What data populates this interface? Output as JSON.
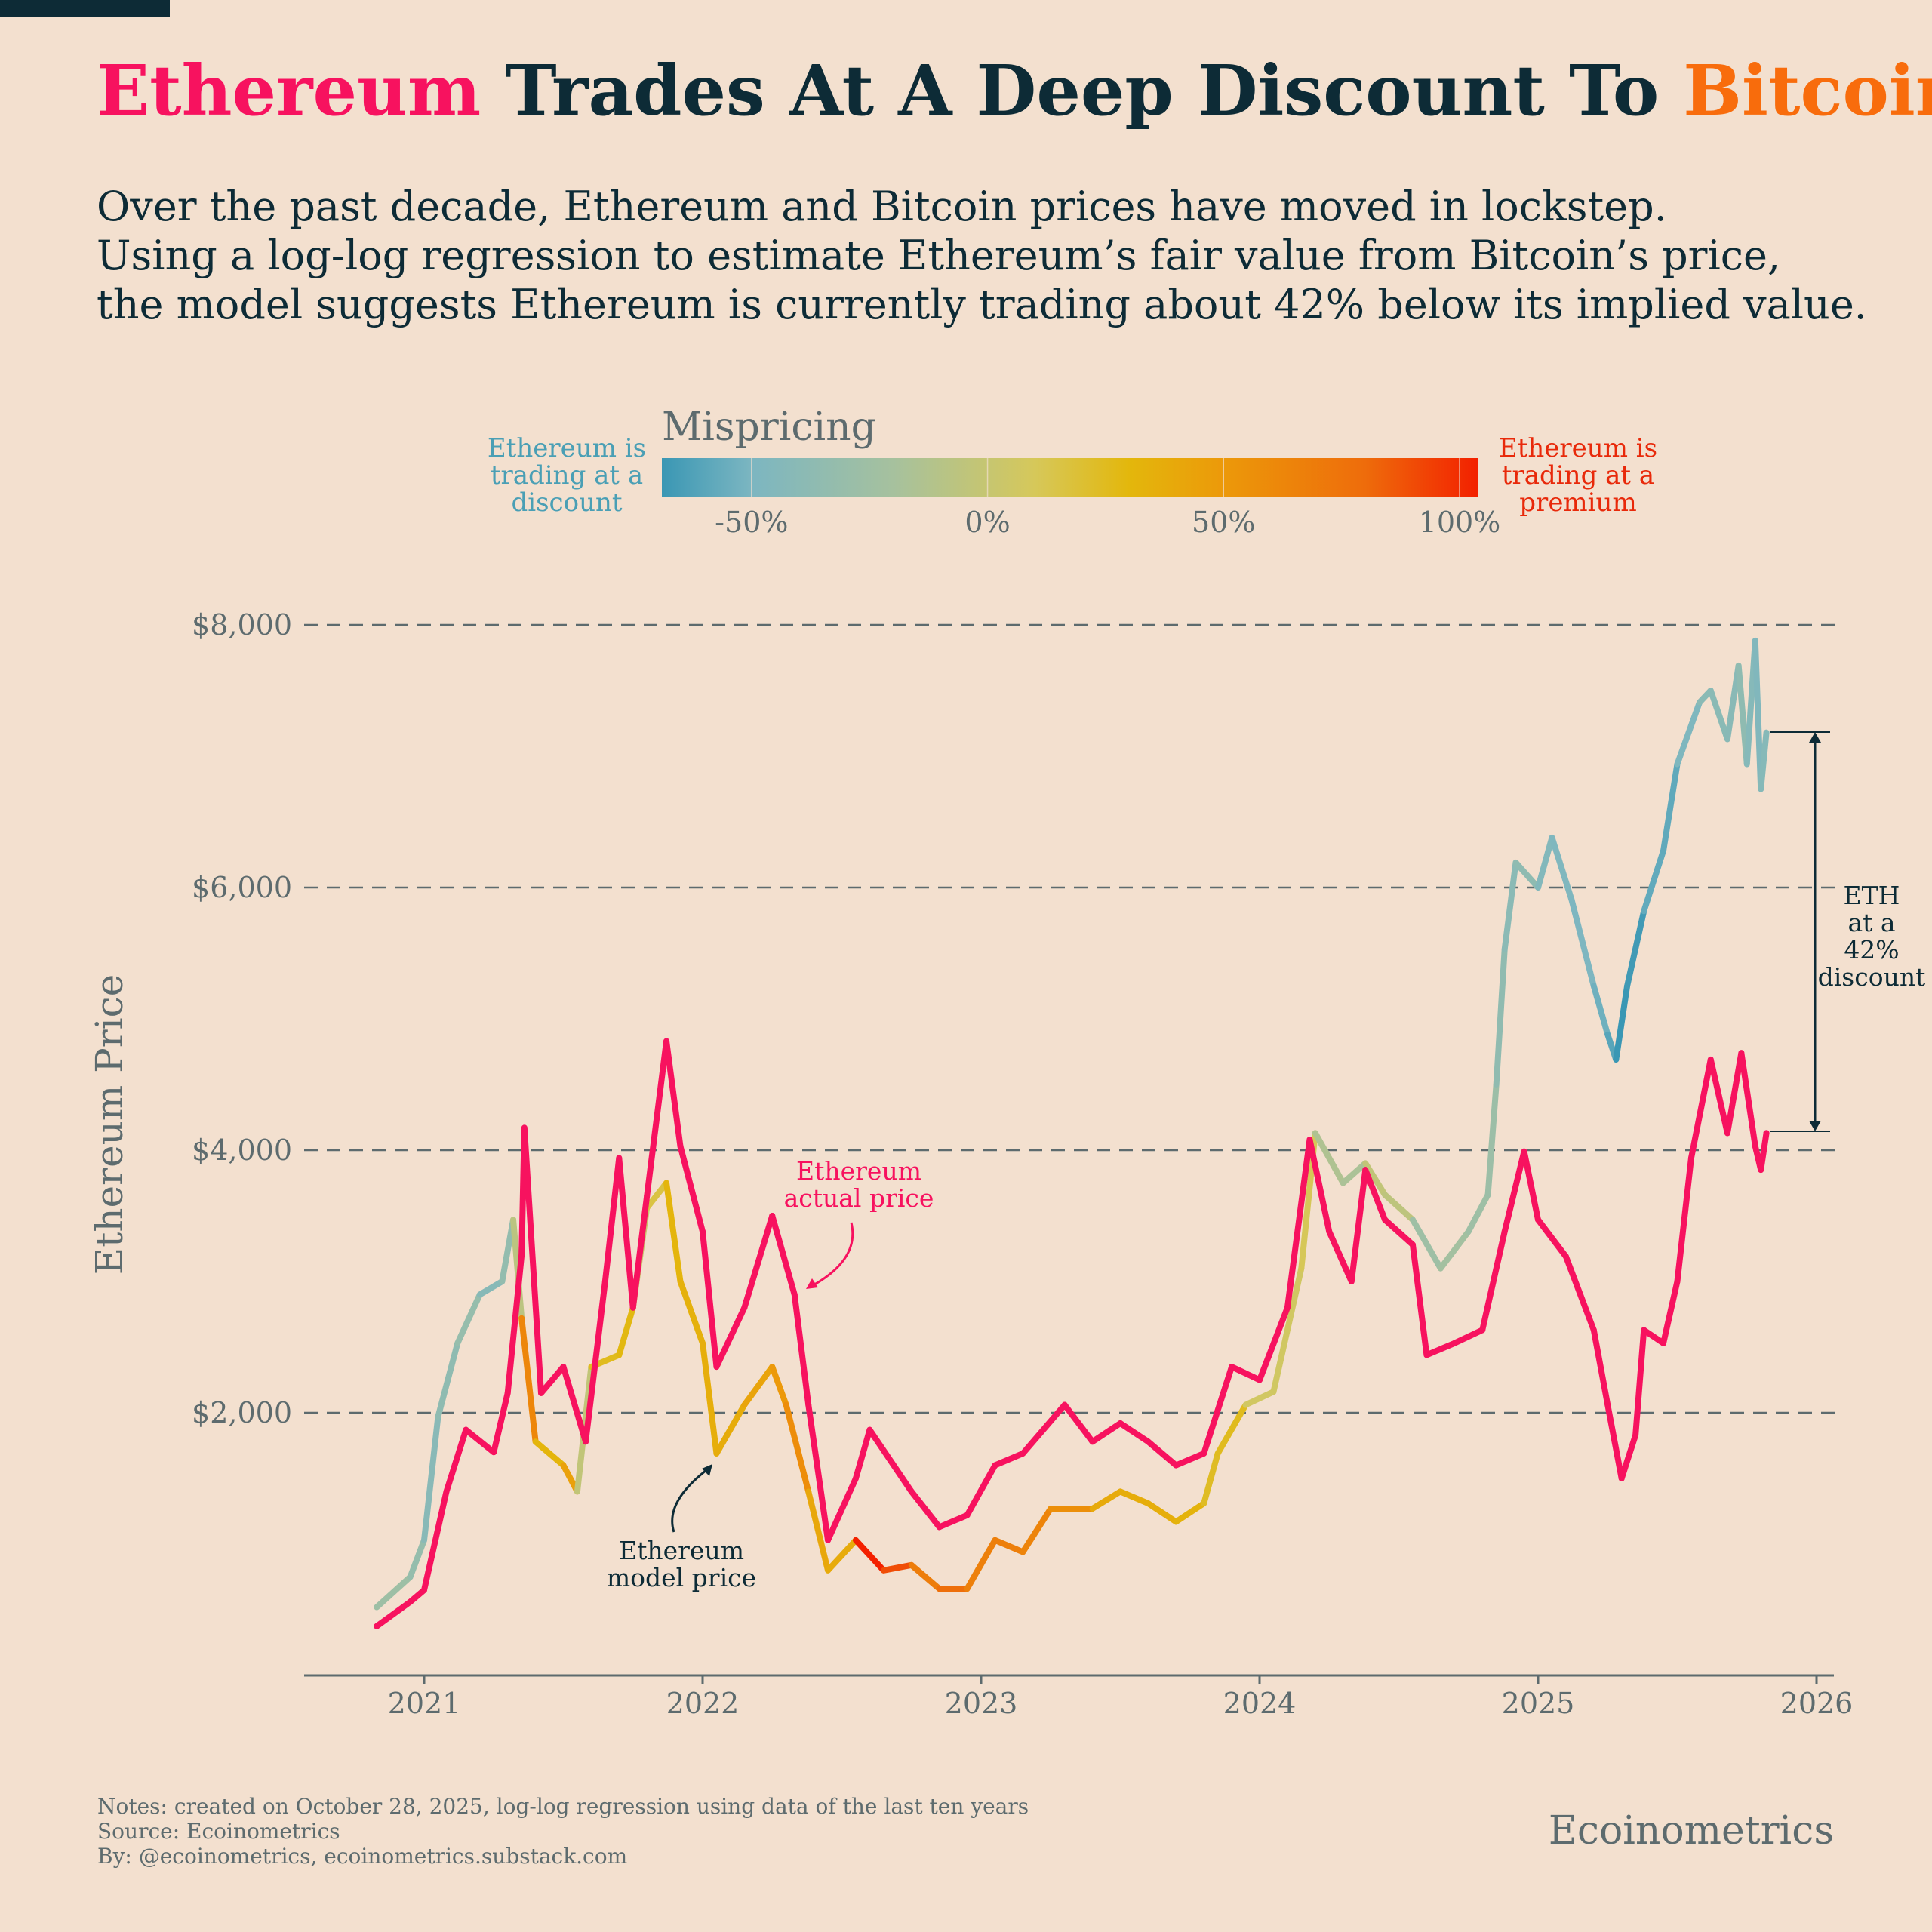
{
  "title": {
    "part1": "Ethereum",
    "part2": " Trades At A Deep Discount To ",
    "part3": "Bitcoin",
    "colors": {
      "ethereum": "#f7125f",
      "dark": "#0d2b36",
      "bitcoin": "#f86c0c"
    }
  },
  "subtitle": [
    "Over the past decade, Ethereum and Bitcoin prices have moved in lockstep.",
    "Using a log-log regression to estimate Ethereum’s fair value from Bitcoin’s price,",
    "the model suggests Ethereum is currently trading about 42% below its implied value."
  ],
  "legend": {
    "title": "Mispricing",
    "left_label": [
      "Ethereum is",
      "trading at a",
      "discount"
    ],
    "right_label": [
      "Ethereum is",
      "trading at a",
      "premium"
    ],
    "ticks": [
      "-50%",
      "0%",
      "50%",
      "100%"
    ],
    "tick_values": [
      -0.5,
      0,
      0.5,
      1.0
    ],
    "range": [
      -0.69,
      1.04
    ],
    "color_stops": [
      [
        -0.69,
        "#3a97b4"
      ],
      [
        -0.5,
        "#7cb6c1"
      ],
      [
        -0.2,
        "#a6c19e"
      ],
      [
        0.1,
        "#d6c85a"
      ],
      [
        0.3,
        "#e3b70c"
      ],
      [
        0.5,
        "#ec990a"
      ],
      [
        0.8,
        "#ee6c0b"
      ],
      [
        1.04,
        "#f32000"
      ]
    ]
  },
  "chart_data": {
    "type": "line",
    "ylabel": "Ethereum Price",
    "xlabel": "",
    "ylim": [
      0,
      8000
    ],
    "xlim": [
      2020.57,
      2026.07
    ],
    "yticks": [
      2000,
      4000,
      6000,
      8000
    ],
    "ytick_labels": [
      "$2,000",
      "$4,000",
      "$6,000",
      "$8,000"
    ],
    "xticks": [
      2021,
      2022,
      2023,
      2024,
      2025,
      2026
    ],
    "xtick_labels": [
      "2021",
      "2022",
      "2023",
      "2024",
      "2025",
      "2026"
    ],
    "grid": "horizontal dashed",
    "actual_color": "#f7125f",
    "series": [
      {
        "name": "Ethereum actual price",
        "x": [
          2020.83,
          2020.95,
          2021.0,
          2021.08,
          2021.15,
          2021.25,
          2021.3,
          2021.35,
          2021.36,
          2021.42,
          2021.5,
          2021.58,
          2021.65,
          2021.7,
          2021.75,
          2021.8,
          2021.87,
          2021.92,
          2022.0,
          2022.05,
          2022.15,
          2022.25,
          2022.33,
          2022.38,
          2022.45,
          2022.55,
          2022.6,
          2022.75,
          2022.85,
          2022.95,
          2023.05,
          2023.15,
          2023.3,
          2023.4,
          2023.5,
          2023.6,
          2023.7,
          2023.8,
          2023.9,
          2024.0,
          2024.1,
          2024.18,
          2024.25,
          2024.33,
          2024.38,
          2024.45,
          2024.55,
          2024.6,
          2024.7,
          2024.8,
          2024.88,
          2024.95,
          2025.0,
          2025.1,
          2025.2,
          2025.25,
          2025.3,
          2025.35,
          2025.38,
          2025.45,
          2025.5,
          2025.55,
          2025.62,
          2025.68,
          2025.73,
          2025.78,
          2025.8,
          2025.82
        ],
        "y": [
          375,
          560,
          650,
          1400,
          1870,
          1700,
          2150,
          3200,
          4170,
          2150,
          2350,
          1780,
          3000,
          3940,
          2800,
          3650,
          4830,
          4030,
          3380,
          2350,
          2800,
          3500,
          2900,
          2060,
          1030,
          1500,
          1870,
          1400,
          1130,
          1220,
          1600,
          1690,
          2060,
          1780,
          1920,
          1780,
          1600,
          1690,
          2350,
          2250,
          2800,
          4080,
          3380,
          3000,
          3850,
          3470,
          3280,
          2440,
          2530,
          2630,
          3380,
          3990,
          3470,
          3190,
          2630,
          2060,
          1500,
          1830,
          2630,
          2530,
          3000,
          3940,
          4690,
          4130,
          4740,
          4030,
          3850,
          4130
        ]
      },
      {
        "name": "Ethereum model price",
        "x": [
          2020.83,
          2020.95,
          2021.0,
          2021.05,
          2021.12,
          2021.2,
          2021.28,
          2021.32,
          2021.35,
          2021.4,
          2021.5,
          2021.55,
          2021.6,
          2021.7,
          2021.75,
          2021.8,
          2021.87,
          2021.92,
          2022.0,
          2022.05,
          2022.15,
          2022.25,
          2022.3,
          2022.38,
          2022.45,
          2022.55,
          2022.65,
          2022.75,
          2022.85,
          2022.95,
          2023.05,
          2023.15,
          2023.25,
          2023.4,
          2023.5,
          2023.6,
          2023.7,
          2023.8,
          2023.85,
          2023.95,
          2024.05,
          2024.15,
          2024.2,
          2024.3,
          2024.38,
          2024.45,
          2024.55,
          2024.65,
          2024.75,
          2024.82,
          2024.85,
          2024.88,
          2024.92,
          2025.0,
          2025.05,
          2025.12,
          2025.2,
          2025.25,
          2025.28,
          2025.32,
          2025.38,
          2025.45,
          2025.5,
          2025.58,
          2025.62,
          2025.68,
          2025.72,
          2025.75,
          2025.78,
          2025.8,
          2025.82
        ],
        "y": [
          520,
          750,
          1030,
          1970,
          2530,
          2900,
          3000,
          3470,
          2720,
          1780,
          1600,
          1400,
          2350,
          2440,
          2800,
          3560,
          3750,
          3000,
          2530,
          1690,
          2060,
          2350,
          2060,
          1400,
          800,
          1030,
          800,
          840,
          660,
          660,
          1030,
          940,
          1270,
          1270,
          1400,
          1310,
          1170,
          1310,
          1690,
          2060,
          2160,
          3100,
          4130,
          3750,
          3900,
          3660,
          3470,
          3100,
          3380,
          3660,
          4500,
          5530,
          6190,
          6000,
          6380,
          5910,
          5250,
          4880,
          4690,
          5250,
          5820,
          6280,
          6940,
          7410,
          7500,
          7130,
          7690,
          6940,
          7880,
          6750,
          7180
        ]
      }
    ],
    "annotations": {
      "actual": [
        "Ethereum",
        "actual price"
      ],
      "model": [
        "Ethereum",
        "model price"
      ],
      "discount": [
        "ETH",
        "at a",
        "42%",
        "discount"
      ]
    }
  },
  "footer": {
    "notes": "Notes: created on October 28, 2025, log-log regression using data of the last ten years",
    "source": "Source: Ecoinometrics",
    "by": "By: @ecoinometrics, ecoinometrics.substack.com",
    "brand": "Ecoinometrics"
  }
}
